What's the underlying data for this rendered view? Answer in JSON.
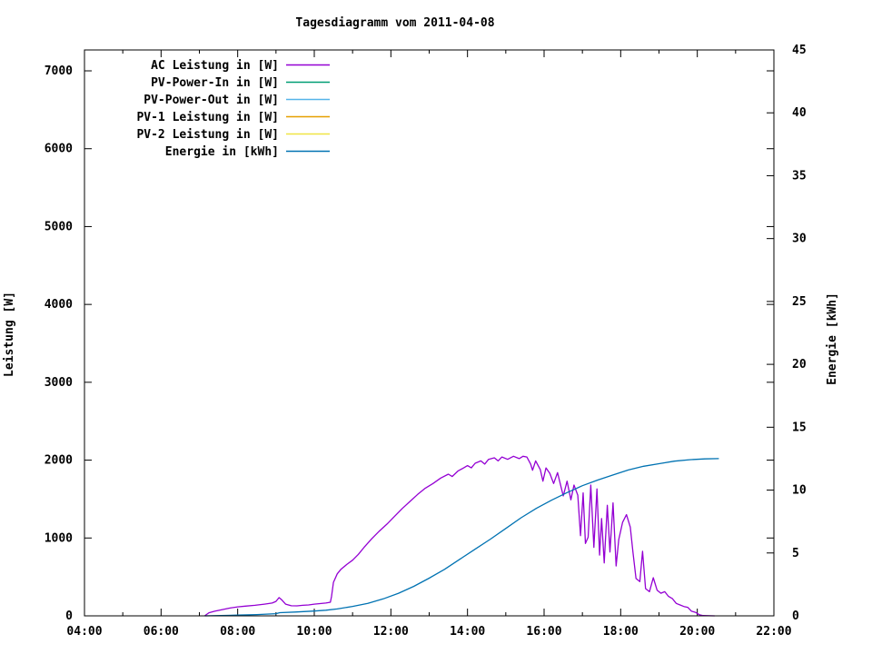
{
  "window": {
    "background": "#ffffff"
  },
  "chart_data": {
    "type": "line",
    "title": "Tagesdiagramm vom 2011-04-08",
    "grid": false,
    "legend_position": "top-left-inside",
    "x_axis": {
      "min_hour": 4,
      "max_hour": 22,
      "major_step_hours": 2,
      "minor_step_hours": 1,
      "tick_labels": [
        "04:00",
        "06:00",
        "08:00",
        "10:00",
        "12:00",
        "14:00",
        "16:00",
        "18:00",
        "20:00",
        "22:00"
      ]
    },
    "y_axis_left": {
      "label": "Leistung [W]",
      "min": 0,
      "max": 7000,
      "major_step": 1000,
      "tick_labels": [
        "0",
        "1000",
        "2000",
        "3000",
        "4000",
        "5000",
        "6000",
        "7000"
      ]
    },
    "y_axis_right": {
      "label": "Energie [kWh]",
      "min": 0,
      "max": 45,
      "major_step": 5,
      "tick_labels": [
        "0",
        "5",
        "10",
        "15",
        "20",
        "25",
        "30",
        "35",
        "40",
        "45"
      ]
    },
    "legend": [
      {
        "label": "AC Leistung in [W]",
        "color": "#9400d3"
      },
      {
        "label": "PV-Power-In in [W]",
        "color": "#009e73"
      },
      {
        "label": "PV-Power-Out in [W]",
        "color": "#56b4e9"
      },
      {
        "label": "PV-1 Leistung in [W]",
        "color": "#e69f00"
      },
      {
        "label": "PV-2 Leistung in [W]",
        "color": "#f0e442"
      },
      {
        "label": "Energie in [kWh]",
        "color": "#0072b2"
      }
    ],
    "series": [
      {
        "name": "AC Leistung in [W]",
        "color": "#9400d3",
        "axis": "left",
        "unit": "W",
        "points": [
          [
            7.15,
            5
          ],
          [
            7.25,
            40
          ],
          [
            7.4,
            60
          ],
          [
            7.6,
            80
          ],
          [
            7.8,
            100
          ],
          [
            8.0,
            115
          ],
          [
            8.2,
            125
          ],
          [
            8.45,
            135
          ],
          [
            8.7,
            150
          ],
          [
            8.9,
            165
          ],
          [
            9.0,
            185
          ],
          [
            9.08,
            235
          ],
          [
            9.15,
            205
          ],
          [
            9.25,
            150
          ],
          [
            9.4,
            130
          ],
          [
            9.55,
            128
          ],
          [
            9.7,
            135
          ],
          [
            9.85,
            140
          ],
          [
            10.0,
            150
          ],
          [
            10.15,
            158
          ],
          [
            10.3,
            165
          ],
          [
            10.42,
            175
          ],
          [
            10.45,
            250
          ],
          [
            10.5,
            430
          ],
          [
            10.6,
            540
          ],
          [
            10.7,
            600
          ],
          [
            10.85,
            660
          ],
          [
            11.0,
            715
          ],
          [
            11.15,
            790
          ],
          [
            11.3,
            880
          ],
          [
            11.5,
            990
          ],
          [
            11.7,
            1090
          ],
          [
            11.9,
            1180
          ],
          [
            12.1,
            1280
          ],
          [
            12.3,
            1380
          ],
          [
            12.5,
            1470
          ],
          [
            12.7,
            1560
          ],
          [
            12.9,
            1640
          ],
          [
            13.1,
            1700
          ],
          [
            13.3,
            1770
          ],
          [
            13.5,
            1820
          ],
          [
            13.6,
            1790
          ],
          [
            13.75,
            1860
          ],
          [
            13.9,
            1900
          ],
          [
            14.0,
            1930
          ],
          [
            14.1,
            1900
          ],
          [
            14.2,
            1960
          ],
          [
            14.35,
            1990
          ],
          [
            14.45,
            1950
          ],
          [
            14.55,
            2010
          ],
          [
            14.7,
            2030
          ],
          [
            14.8,
            1990
          ],
          [
            14.9,
            2040
          ],
          [
            15.05,
            2010
          ],
          [
            15.2,
            2050
          ],
          [
            15.35,
            2020
          ],
          [
            15.45,
            2050
          ],
          [
            15.55,
            2040
          ],
          [
            15.65,
            1950
          ],
          [
            15.7,
            1870
          ],
          [
            15.78,
            1990
          ],
          [
            15.9,
            1880
          ],
          [
            15.97,
            1730
          ],
          [
            16.05,
            1900
          ],
          [
            16.15,
            1830
          ],
          [
            16.25,
            1700
          ],
          [
            16.35,
            1840
          ],
          [
            16.5,
            1540
          ],
          [
            16.6,
            1730
          ],
          [
            16.7,
            1490
          ],
          [
            16.78,
            1680
          ],
          [
            16.88,
            1550
          ],
          [
            16.95,
            1030
          ],
          [
            17.02,
            1580
          ],
          [
            17.08,
            930
          ],
          [
            17.15,
            1010
          ],
          [
            17.22,
            1680
          ],
          [
            17.3,
            880
          ],
          [
            17.38,
            1630
          ],
          [
            17.45,
            780
          ],
          [
            17.5,
            1250
          ],
          [
            17.57,
            680
          ],
          [
            17.65,
            1420
          ],
          [
            17.72,
            820
          ],
          [
            17.8,
            1450
          ],
          [
            17.88,
            640
          ],
          [
            17.95,
            980
          ],
          [
            18.05,
            1200
          ],
          [
            18.15,
            1300
          ],
          [
            18.25,
            1140
          ],
          [
            18.32,
            820
          ],
          [
            18.4,
            480
          ],
          [
            18.5,
            440
          ],
          [
            18.57,
            830
          ],
          [
            18.65,
            350
          ],
          [
            18.75,
            310
          ],
          [
            18.85,
            490
          ],
          [
            18.95,
            330
          ],
          [
            19.05,
            290
          ],
          [
            19.15,
            310
          ],
          [
            19.25,
            250
          ],
          [
            19.35,
            220
          ],
          [
            19.45,
            160
          ],
          [
            19.55,
            140
          ],
          [
            19.65,
            120
          ],
          [
            19.75,
            110
          ],
          [
            19.85,
            60
          ],
          [
            19.95,
            45
          ],
          [
            20.05,
            15
          ],
          [
            20.15,
            3
          ],
          [
            20.45,
            0
          ]
        ]
      },
      {
        "name": "Energie in [kWh]",
        "color": "#0072b2",
        "axis": "right",
        "unit": "kWh",
        "points": [
          [
            7.15,
            0
          ],
          [
            8.0,
            0.06
          ],
          [
            8.5,
            0.1
          ],
          [
            9.0,
            0.17
          ],
          [
            9.1,
            0.25
          ],
          [
            9.5,
            0.3
          ],
          [
            10.0,
            0.38
          ],
          [
            10.3,
            0.45
          ],
          [
            10.6,
            0.55
          ],
          [
            11.0,
            0.75
          ],
          [
            11.4,
            1.0
          ],
          [
            11.8,
            1.35
          ],
          [
            12.2,
            1.8
          ],
          [
            12.6,
            2.35
          ],
          [
            13.0,
            3.0
          ],
          [
            13.4,
            3.7
          ],
          [
            13.8,
            4.5
          ],
          [
            14.2,
            5.3
          ],
          [
            14.6,
            6.1
          ],
          [
            15.0,
            6.95
          ],
          [
            15.4,
            7.8
          ],
          [
            15.8,
            8.55
          ],
          [
            16.2,
            9.2
          ],
          [
            16.6,
            9.8
          ],
          [
            17.0,
            10.35
          ],
          [
            17.4,
            10.8
          ],
          [
            17.8,
            11.2
          ],
          [
            18.2,
            11.6
          ],
          [
            18.6,
            11.9
          ],
          [
            19.0,
            12.1
          ],
          [
            19.4,
            12.3
          ],
          [
            19.8,
            12.42
          ],
          [
            20.2,
            12.48
          ],
          [
            20.55,
            12.5
          ]
        ]
      }
    ]
  }
}
